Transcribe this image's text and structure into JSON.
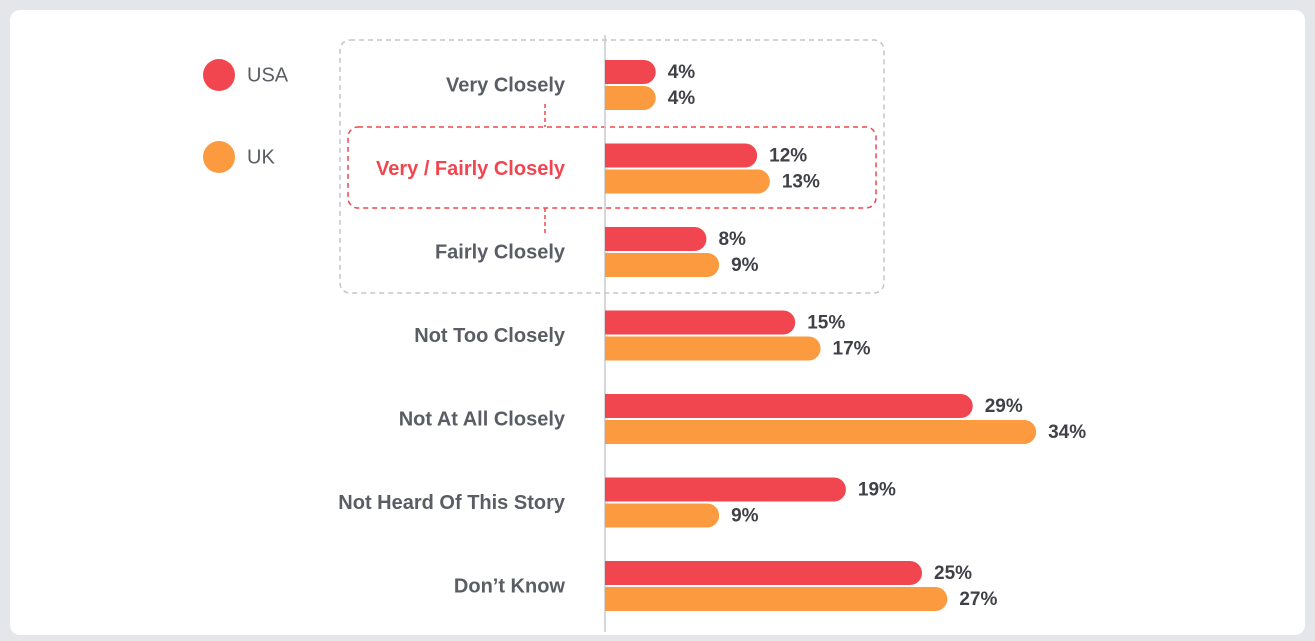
{
  "chart_data": {
    "type": "hbar",
    "categories": [
      "Very Closely",
      "Very / Fairly Closely",
      "Fairly Closely",
      "Not Too Closely",
      "Not At All Closely",
      "Not Heard Of This Story",
      "Don’t Know"
    ],
    "series": [
      {
        "name": "USA",
        "color": "#f1464f",
        "values": [
          4,
          12,
          8,
          15,
          29,
          19,
          25
        ],
        "value_labels": [
          "4%",
          "12%",
          "8%",
          "15%",
          "29%",
          "19%",
          "25%"
        ]
      },
      {
        "name": "UK",
        "color": "#fb9a3f",
        "values": [
          4,
          13,
          9,
          17,
          34,
          9,
          27
        ],
        "value_labels": [
          "4%",
          "13%",
          "9%",
          "17%",
          "34%",
          "9%",
          "27%"
        ]
      }
    ],
    "legend": "top-left"
  }
}
